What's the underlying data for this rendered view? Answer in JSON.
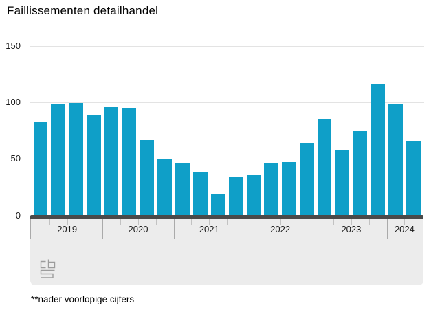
{
  "chart": {
    "title": "Faillissementen detailhandel",
    "footnote": "**nader voorlopige cijfers"
  },
  "icons": {
    "logo": "cbs-logo"
  },
  "colors": {
    "bar": "#0f9fc8",
    "zero_line": "#4a4a4a",
    "axis_band": "#ececec",
    "gridline": "#e3e3e3",
    "tick_short": "#c2c2c2",
    "tick_long": "#aaaaaa",
    "logo_gray": "#9c9c9c"
  },
  "chart_data": {
    "type": "bar",
    "title": "Faillissementen detailhandel",
    "xlabel": "",
    "ylabel": "",
    "ylim": [
      0,
      150
    ],
    "yticks": [
      0,
      50,
      100,
      150
    ],
    "grid": true,
    "legend": false,
    "categories": [
      "2019 Q1",
      "2019 Q2",
      "2019 Q3",
      "2019 Q4",
      "2020 Q1",
      "2020 Q2",
      "2020 Q3",
      "2020 Q4",
      "2021 Q1",
      "2021 Q2",
      "2021 Q3",
      "2021 Q4",
      "2022 Q1",
      "2022 Q2",
      "2022 Q3",
      "2022 Q4",
      "2023 Q1",
      "2023 Q2",
      "2023 Q3",
      "2023 Q4",
      "2024 Q1",
      "2024 Q2"
    ],
    "values": [
      83,
      98,
      99,
      88,
      96,
      95,
      67,
      49,
      46,
      38,
      19,
      34,
      35,
      46,
      47,
      64,
      85,
      58,
      74,
      116,
      98,
      66
    ],
    "groups": [
      {
        "year": "2019",
        "values": [
          83,
          98,
          99,
          88
        ]
      },
      {
        "year": "2020",
        "values": [
          96,
          95,
          67,
          49
        ]
      },
      {
        "year": "2021",
        "values": [
          46,
          38,
          19,
          34
        ]
      },
      {
        "year": "2022",
        "values": [
          35,
          46,
          47,
          64
        ]
      },
      {
        "year": "2023",
        "values": [
          85,
          58,
          74,
          116
        ]
      },
      {
        "year": "2024",
        "values": [
          98,
          66
        ]
      }
    ],
    "footnote": "**nader voorlopige cijfers"
  }
}
